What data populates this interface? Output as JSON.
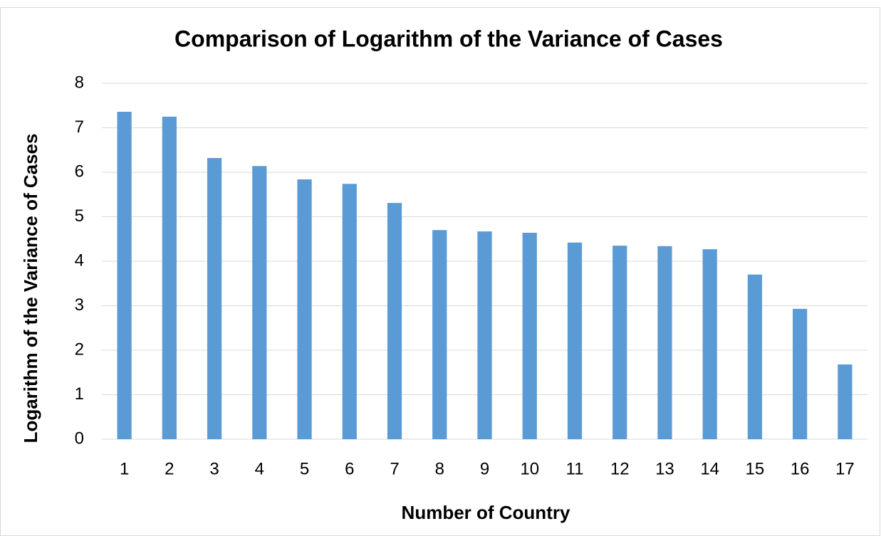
{
  "chart_data": {
    "type": "bar",
    "title": "Comparison of Logarithm of the Variance of Cases",
    "x_label": "Number of Country",
    "y_label": "Logarithm of the Variance of Cases",
    "categories": [
      "1",
      "2",
      "3",
      "4",
      "5",
      "6",
      "7",
      "8",
      "9",
      "10",
      "11",
      "12",
      "13",
      "14",
      "15",
      "16",
      "17"
    ],
    "values": [
      7.36,
      7.25,
      6.32,
      6.14,
      5.84,
      5.74,
      5.31,
      4.7,
      4.67,
      4.64,
      4.42,
      4.35,
      4.34,
      4.27,
      3.7,
      2.93,
      1.68
    ],
    "color": "#5b9bd5",
    "ylim": [
      0,
      8
    ],
    "yticks": [
      0,
      1,
      2,
      3,
      4,
      5,
      6,
      7,
      8
    ],
    "grid": true
  }
}
